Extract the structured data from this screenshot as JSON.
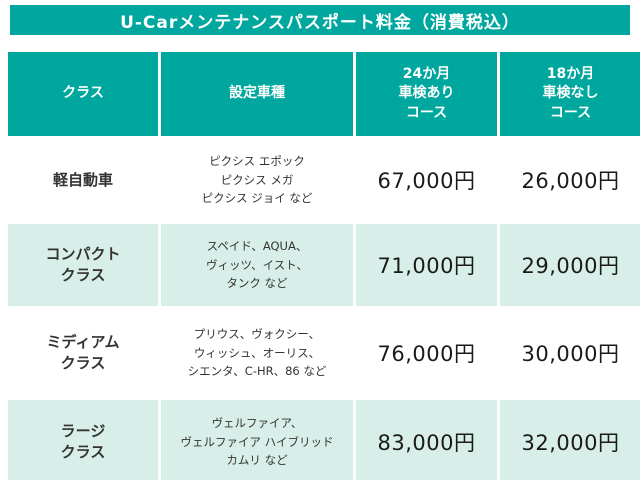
{
  "banner": {
    "title": "U-Carメンテナンスパスポート料金（消費税込）"
  },
  "colors": {
    "teal": "#00A79E",
    "mint": "#D8EFE9",
    "text": "#333333"
  },
  "table": {
    "headers": [
      {
        "label": "クラス"
      },
      {
        "label": "設定車種"
      },
      {
        "label": "24か月\n車検あり\nコース"
      },
      {
        "label": "18か月\n車検なし\nコース"
      }
    ],
    "rows": [
      {
        "class": "軽自動車",
        "models": "ピクシス エポック\nピクシス メガ\nピクシス ジョイ など",
        "price_24": "67,000円",
        "price_18": "26,000円"
      },
      {
        "class": "コンパクト\nクラス",
        "models": "スペイド、AQUA、\nヴィッツ、イスト、\nタンク など",
        "price_24": "71,000円",
        "price_18": "29,000円"
      },
      {
        "class": "ミディアム\nクラス",
        "models": "プリウス、ヴォクシー、\nウィッシュ、オーリス、\nシエンタ、C-HR、86 など",
        "price_24": "76,000円",
        "price_18": "30,000円"
      },
      {
        "class": "ラージ\nクラス",
        "models": "ヴェルファイア、\nヴェルファイア ハイブリッド\nカムリ など",
        "price_24": "83,000円",
        "price_18": "32,000円"
      }
    ]
  },
  "chart_data": {
    "type": "table",
    "title": "U-Carメンテナンスパスポート料金（消費税込）",
    "columns": [
      "クラス",
      "設定車種",
      "24か月 車検あり コース",
      "18か月 車検なし コース"
    ],
    "rows": [
      [
        "軽自動車",
        "ピクシス エポック ピクシス メガ ピクシス ジョイ など",
        "67,000円",
        "26,000円"
      ],
      [
        "コンパクトクラス",
        "スペイド、AQUA、ヴィッツ、イスト、タンク など",
        "71,000円",
        "29,000円"
      ],
      [
        "ミディアムクラス",
        "プリウス、ヴォクシー、ウィッシュ、オーリス、シエンタ、C-HR、86 など",
        "76,000円",
        "30,000円"
      ],
      [
        "ラージクラス",
        "ヴェルファイア、ヴェルファイア ハイブリッド カムリ など",
        "83,000円",
        "32,000円"
      ]
    ]
  }
}
